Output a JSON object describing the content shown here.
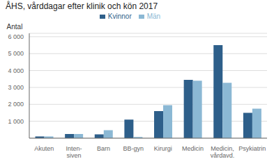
{
  "chart_data": {
    "type": "bar",
    "title": "ÅHS, vårddagar efter klinik och kön 2017",
    "ylabel": "Antal",
    "categories": [
      "Akuten",
      "Inten-\nsiven",
      "Barn",
      "BB-gyn",
      "Kirurgi",
      "Medicin",
      "Medicin,\nvårdavd.",
      "Psykiatrin"
    ],
    "series": [
      {
        "name": "Kvinnor",
        "color": "#2E5F8A",
        "values": [
          100,
          250,
          230,
          1100,
          1600,
          3450,
          5500,
          1500
        ]
      },
      {
        "name": "Män",
        "color": "#8BB8D4",
        "values": [
          100,
          250,
          470,
          70,
          1950,
          3400,
          3270,
          1750
        ]
      }
    ],
    "ylim": [
      0,
      6200
    ],
    "yticks": [
      {
        "value": 1000,
        "label": "1 000"
      },
      {
        "value": 2000,
        "label": "2 000"
      },
      {
        "value": 3000,
        "label": "3 000"
      },
      {
        "value": 4000,
        "label": "4 000"
      },
      {
        "value": 5000,
        "label": "5 000"
      },
      {
        "value": 6000,
        "label": "6 000"
      }
    ],
    "grid": true,
    "legend": "top"
  }
}
